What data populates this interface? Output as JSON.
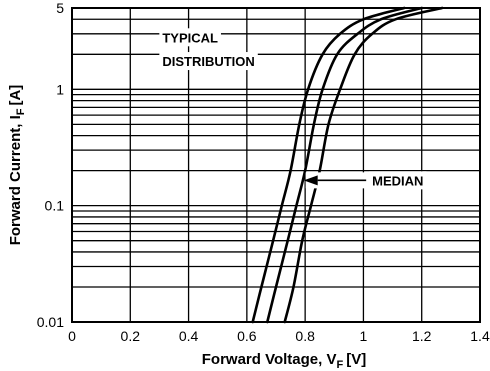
{
  "chart_data": {
    "type": "line",
    "xlabel": "Forward Voltage, V",
    "xlabel_sub": "F",
    "xlabel_unit": "[V]",
    "ylabel": "Forward Current, I",
    "ylabel_sub": "F",
    "ylabel_unit": "[A]",
    "xlim": [
      0,
      1.4
    ],
    "ylim": [
      0.01,
      5
    ],
    "yscale": "log",
    "grid": true,
    "x_ticks": [
      0,
      0.2,
      0.4,
      0.6,
      0.8,
      1,
      1.2,
      1.4
    ],
    "x_tick_labels": [
      "0",
      "0.2",
      "0.4",
      "0.6",
      "0.8",
      "1",
      "1.2",
      "1.4"
    ],
    "y_ticks": [
      0.01,
      0.1,
      1,
      5
    ],
    "y_tick_labels": [
      "0.01",
      "0.1",
      "1",
      "5"
    ],
    "series": [
      {
        "points": [
          [
            0.62,
            0.01
          ],
          [
            0.65,
            0.02
          ],
          [
            0.69,
            0.05
          ],
          [
            0.72,
            0.1
          ],
          [
            0.75,
            0.2
          ],
          [
            0.78,
            0.5
          ],
          [
            0.81,
            1.0
          ],
          [
            0.86,
            2.0
          ],
          [
            0.92,
            3.0
          ],
          [
            1.0,
            4.0
          ],
          [
            1.14,
            5.0
          ]
        ]
      },
      {
        "points": [
          [
            0.67,
            0.01
          ],
          [
            0.7,
            0.02
          ],
          [
            0.74,
            0.05
          ],
          [
            0.77,
            0.1
          ],
          [
            0.8,
            0.2
          ],
          [
            0.83,
            0.5
          ],
          [
            0.86,
            1.0
          ],
          [
            0.91,
            2.0
          ],
          [
            0.98,
            3.0
          ],
          [
            1.06,
            4.0
          ],
          [
            1.2,
            5.0
          ]
        ]
      },
      {
        "points": [
          [
            0.73,
            0.01
          ],
          [
            0.76,
            0.02
          ],
          [
            0.79,
            0.05
          ],
          [
            0.82,
            0.1
          ],
          [
            0.85,
            0.2
          ],
          [
            0.88,
            0.5
          ],
          [
            0.92,
            1.0
          ],
          [
            0.97,
            2.0
          ],
          [
            1.03,
            3.0
          ],
          [
            1.11,
            4.0
          ],
          [
            1.27,
            5.0
          ]
        ]
      }
    ],
    "annotations": [
      {
        "text": "TYPICAL",
        "x": 0.31,
        "y": 2.8
      },
      {
        "text": "DISTRIBUTION",
        "x": 0.31,
        "y": 1.75
      },
      {
        "text": "MEDIAN",
        "x": 1.03,
        "y": 0.165,
        "arrow_to": [
          0.795,
          0.165
        ]
      }
    ]
  }
}
